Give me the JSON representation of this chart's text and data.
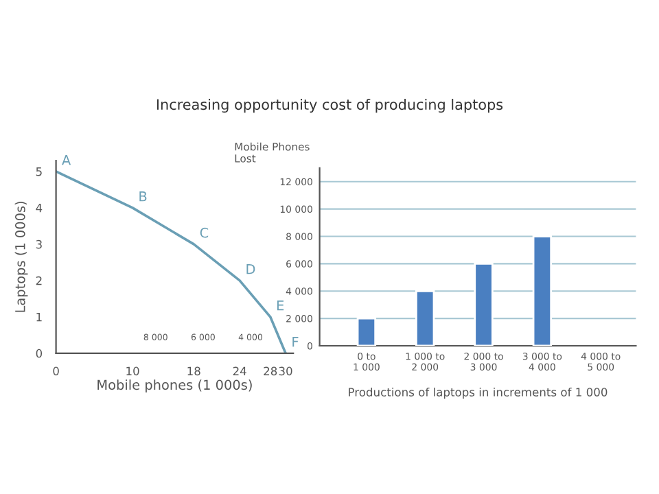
{
  "chart_data": [
    {
      "type": "line",
      "title": "Increasing opportunity cost of producing laptops",
      "xlabel": "Mobile phones (1 000s)",
      "ylabel": "Laptops (1 000s)",
      "x": [
        0,
        10,
        18,
        24,
        28,
        30
      ],
      "series": [
        {
          "color": "#6a9fb5",
          "values": [
            5,
            4,
            3,
            2,
            1,
            0
          ]
        }
      ],
      "xlim": [
        0,
        31
      ],
      "ylim": [
        0,
        5.3
      ],
      "xticks": [
        0,
        10,
        18,
        24,
        28,
        30
      ],
      "yticks": [
        0,
        1,
        2,
        3,
        4,
        5
      ],
      "marker": "none",
      "line_style": "solid",
      "grid": false,
      "annotations": [
        {
          "text": "A",
          "x": 0,
          "y": 5
        },
        {
          "text": "B",
          "x": 10,
          "y": 4
        },
        {
          "text": "C",
          "x": 18,
          "y": 3
        },
        {
          "text": "D",
          "x": 24,
          "y": 2
        },
        {
          "text": "E",
          "x": 28,
          "y": 1
        },
        {
          "text": "F",
          "x": 30,
          "y": 0
        },
        "8 000",
        "6 000",
        "4 000"
      ]
    },
    {
      "type": "bar",
      "ylabel": "Mobile Phones\nLost",
      "xlabel": "Productions of laptops in increments of 1 000",
      "categories": [
        "0 to\n1 000",
        "1 000 to\n2 000",
        "2 000 to\n3 000",
        "3 000 to\n4 000",
        "4 000 to\n5 000"
      ],
      "series": [
        {
          "color": "#4a7fc1",
          "values": [
            2000,
            4000,
            6000,
            8000,
            null
          ]
        }
      ],
      "ylim": [
        0,
        13000
      ],
      "yticks": [
        {
          "value": 0,
          "label": "0"
        },
        {
          "value": 2000,
          "label": "2 000"
        },
        {
          "value": 4000,
          "label": "4 000"
        },
        {
          "value": 6000,
          "label": "6 000"
        },
        {
          "value": 8000,
          "label": "8 000"
        },
        {
          "value": 10000,
          "label": "10 000"
        },
        {
          "value": 12000,
          "label": "12 000"
        }
      ],
      "grid": "y"
    }
  ]
}
